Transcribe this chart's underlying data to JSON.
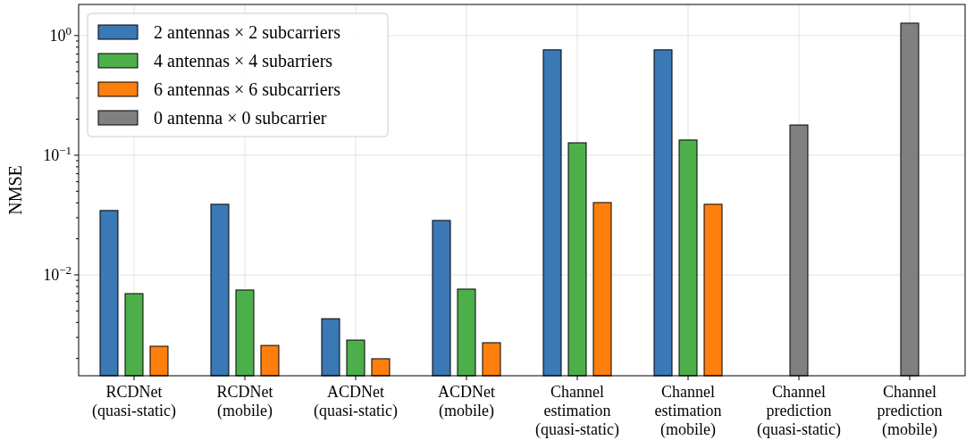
{
  "chart_data": {
    "type": "bar",
    "ylabel": "NMSE",
    "log": true,
    "grid": true,
    "legend": "top left",
    "categories": [
      "RCDNet\n(quasi-static)",
      "RCDNet\n(mobile)",
      "ACDNet\n(quasi-static)",
      "ACDNet\n(mobile)",
      "Channel\nestimation\n(quasi-static)",
      "Channel\nestimation\n(mobile)",
      "Channel\nprediction\n(quasi-static)",
      "Channel\nprediction\n(mobile)"
    ],
    "series": [
      {
        "name": "2 antennas × 2 subcarriers",
        "color": "#3a78b6",
        "values": [
          0.0345,
          0.0389,
          0.0043,
          0.0285,
          0.76,
          0.76,
          null,
          null
        ]
      },
      {
        "name": "4 antennas × 4 subarriers",
        "color": "#4daf4a",
        "values": [
          0.00697,
          0.00747,
          0.00285,
          0.0076,
          0.127,
          0.134,
          null,
          null
        ]
      },
      {
        "name": "6 antennas × 6 subcarriers",
        "color": "#ff7f0e",
        "values": [
          0.00253,
          0.00257,
          0.00199,
          0.00271,
          0.0402,
          0.0389,
          null,
          null
        ]
      },
      {
        "name": "0 antenna × 0 subcarrier",
        "color": "#808080",
        "values": [
          null,
          null,
          null,
          null,
          null,
          null,
          0.179,
          1.27
        ]
      }
    ],
    "ylim": [
      0.001435,
      1.82
    ],
    "yticks": [
      {
        "value": 0.002,
        "label": null
      },
      {
        "value": 0.003,
        "label": null
      },
      {
        "value": 0.004,
        "label": null
      },
      {
        "value": 0.005,
        "label": null
      },
      {
        "value": 0.006,
        "label": null
      },
      {
        "value": 0.007,
        "label": null
      },
      {
        "value": 0.008,
        "label": null
      },
      {
        "value": 0.009,
        "label": null
      },
      {
        "value": 0.01,
        "label": "10$^{−2}$"
      },
      {
        "value": 0.02,
        "label": null
      },
      {
        "value": 0.03,
        "label": null
      },
      {
        "value": 0.04,
        "label": null
      },
      {
        "value": 0.05,
        "label": null
      },
      {
        "value": 0.06,
        "label": null
      },
      {
        "value": 0.07,
        "label": null
      },
      {
        "value": 0.08,
        "label": null
      },
      {
        "value": 0.09,
        "label": null
      },
      {
        "value": 0.1,
        "label": "10$^{−1}$"
      },
      {
        "value": 0.2,
        "label": null
      },
      {
        "value": 0.3,
        "label": null
      },
      {
        "value": 0.4,
        "label": null
      },
      {
        "value": 0.5,
        "label": null
      },
      {
        "value": 0.6,
        "label": null
      },
      {
        "value": 0.7,
        "label": null
      },
      {
        "value": 0.8,
        "label": null
      },
      {
        "value": 0.9,
        "label": null
      },
      {
        "value": 1,
        "label": "10$^{0}$"
      }
    ]
  }
}
